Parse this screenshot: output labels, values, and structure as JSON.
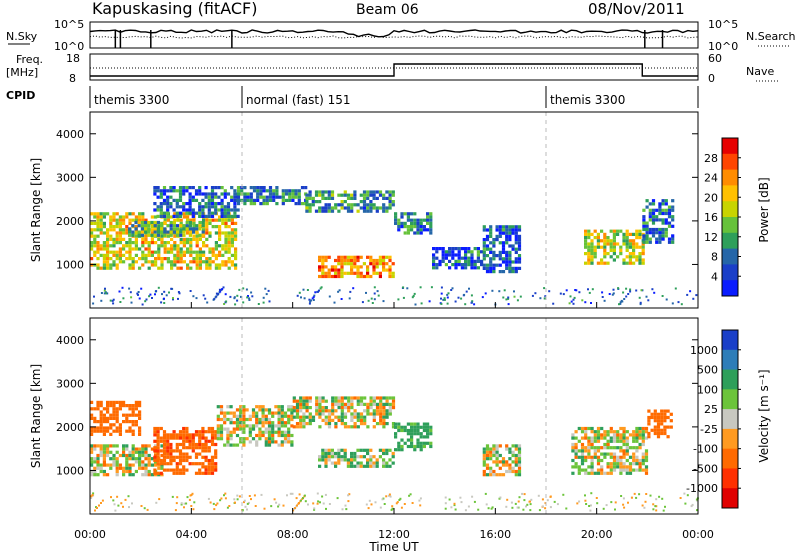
{
  "header": {
    "station": "Kapuskasing (fitACF)",
    "beam": "Beam 06",
    "date": "08/Nov/2011"
  },
  "strip_labels": {
    "nsky": "N.Sky",
    "nsky_top": "10^5",
    "nsky_bottom": "10^0",
    "nsearch": "N.Search",
    "nsearch_top": "10^5",
    "nsearch_bottom": "10^0",
    "freq_line1": "Freq.",
    "freq_line2": "[MHz]",
    "freq_top": "18",
    "freq_bottom": "8",
    "nave": "Nave",
    "nave_top": "60",
    "nave_bottom": "0",
    "cpid": "CPID"
  },
  "cpid_segments": [
    {
      "start_hour": 0,
      "label": "themis 3300"
    },
    {
      "start_hour": 6,
      "label": "normal (fast) 151"
    },
    {
      "start_hour": 18,
      "label": "themis 3300"
    }
  ],
  "power_colorbar": {
    "label": "Power [dB]",
    "ticks": [
      "28",
      "24",
      "20",
      "16",
      "12",
      "8",
      "4"
    ],
    "colors": [
      "#e60000",
      "#ff4500",
      "#ff8c00",
      "#ffc000",
      "#c8d400",
      "#66c23a",
      "#2e9f5a",
      "#2566a8",
      "#1a3fc8",
      "#0a1cff"
    ]
  },
  "velocity_colorbar": {
    "label": "Velocity [m s⁻¹]",
    "ticks": [
      "1000",
      "500",
      "100",
      "25",
      "-25",
      "-100",
      "-500",
      "-1000"
    ],
    "colors": [
      "#1a3fc8",
      "#2e7db8",
      "#2e9f5a",
      "#6cc43a",
      "#c8c8c0",
      "#ff9a20",
      "#ff6a00",
      "#ff3000",
      "#e00000"
    ]
  },
  "chart_data": [
    {
      "type": "heatmap",
      "name": "power",
      "xlabel": "",
      "ylabel": "Slant Range [km]",
      "xlim": [
        0,
        24
      ],
      "ylim": [
        0,
        4500
      ],
      "yticks": [
        1000,
        2000,
        3000,
        4000
      ],
      "colorbar_label": "Power [dB]",
      "colorbar_ticks": [
        4,
        8,
        12,
        16,
        20,
        24,
        28
      ],
      "bands": [
        {
          "x": [
            0.0,
            5.8
          ],
          "y": [
            900,
            2200
          ],
          "level": 0.6
        },
        {
          "x": [
            1.5,
            4.5
          ],
          "y": [
            1700,
            2000
          ],
          "level": 0.4
        },
        {
          "x": [
            2.5,
            5.8
          ],
          "y": [
            2100,
            2800
          ],
          "level": 0.2
        },
        {
          "x": [
            5.8,
            8.5
          ],
          "y": [
            2400,
            2800
          ],
          "level": 0.25
        },
        {
          "x": [
            8.5,
            12.0
          ],
          "y": [
            2200,
            2700
          ],
          "level": 0.3
        },
        {
          "x": [
            9.0,
            12.0
          ],
          "y": [
            700,
            1200
          ],
          "level": 0.75
        },
        {
          "x": [
            12.0,
            13.5
          ],
          "y": [
            1700,
            2200
          ],
          "level": 0.25
        },
        {
          "x": [
            13.5,
            15.5
          ],
          "y": [
            900,
            1400
          ],
          "level": 0.15
        },
        {
          "x": [
            15.5,
            17.0
          ],
          "y": [
            800,
            1900
          ],
          "level": 0.15
        },
        {
          "x": [
            19.5,
            21.8
          ],
          "y": [
            1000,
            1800
          ],
          "level": 0.55
        },
        {
          "x": [
            21.8,
            23.0
          ],
          "y": [
            1500,
            2500
          ],
          "level": 0.2
        }
      ]
    },
    {
      "type": "heatmap",
      "name": "velocity",
      "xlabel": "Time UT",
      "ylabel": "Slant Range [km]",
      "xlim": [
        0,
        24
      ],
      "ylim": [
        0,
        4500
      ],
      "xticks": [
        "00:00",
        "04:00",
        "08:00",
        "12:00",
        "16:00",
        "20:00",
        "00:00"
      ],
      "yticks": [
        1000,
        2000,
        3000,
        4000
      ],
      "colorbar_label": "Velocity [m s⁻¹]",
      "colorbar_ticks": [
        1000,
        500,
        100,
        25,
        -25,
        -100,
        -500,
        -1000
      ],
      "bands": [
        {
          "x": [
            0.0,
            2.0
          ],
          "y": [
            1800,
            2600
          ],
          "value": -300
        },
        {
          "x": [
            0.0,
            2.8
          ],
          "y": [
            900,
            1600
          ],
          "value": 0
        },
        {
          "x": [
            2.5,
            5.0
          ],
          "y": [
            900,
            2000
          ],
          "value": -400
        },
        {
          "x": [
            5.0,
            8.0
          ],
          "y": [
            1600,
            2500
          ],
          "value": 0
        },
        {
          "x": [
            8.0,
            12.0
          ],
          "y": [
            2000,
            2700
          ],
          "value": 0
        },
        {
          "x": [
            9.0,
            12.0
          ],
          "y": [
            1100,
            1500
          ],
          "value": 80
        },
        {
          "x": [
            12.0,
            13.5
          ],
          "y": [
            1500,
            2100
          ],
          "value": 200
        },
        {
          "x": [
            15.5,
            17.0
          ],
          "y": [
            900,
            1600
          ],
          "value": 0
        },
        {
          "x": [
            19.0,
            22.0
          ],
          "y": [
            900,
            2000
          ],
          "value": 0
        },
        {
          "x": [
            22.0,
            23.0
          ],
          "y": [
            1800,
            2400
          ],
          "value": -300
        }
      ]
    }
  ]
}
